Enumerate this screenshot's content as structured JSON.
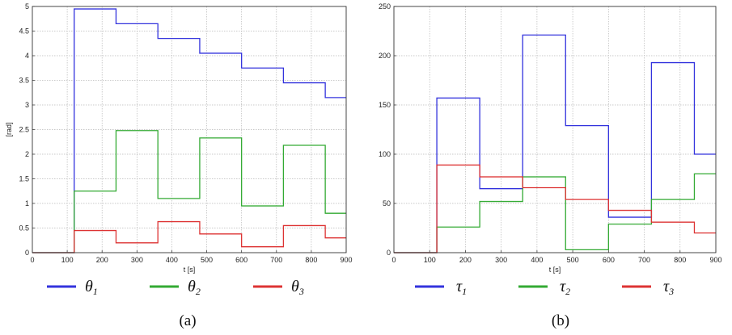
{
  "chart_data": [
    {
      "type": "line",
      "step": true,
      "xlabel": "t [s]",
      "ylabel": "[rad]",
      "xlim": [
        0,
        900
      ],
      "ylim": [
        0,
        5
      ],
      "xticks": [
        "0",
        "100",
        "200",
        "300",
        "400",
        "500",
        "600",
        "700",
        "800",
        "900"
      ],
      "yticks": [
        "0",
        "0.5",
        "1",
        "1.5",
        "2",
        "2.5",
        "3",
        "3.5",
        "4",
        "4.5",
        "5"
      ],
      "grid": true,
      "legend_position": "bottom",
      "caption": "(a)",
      "series": [
        {
          "name": "θ",
          "subscript": "1",
          "color": "#3333dd",
          "x": [
            0,
            120,
            120,
            240,
            360,
            480,
            600,
            720,
            840,
            900
          ],
          "y": [
            0,
            0,
            4.95,
            4.65,
            4.35,
            4.05,
            3.75,
            3.45,
            3.15,
            3.15
          ]
        },
        {
          "name": "θ",
          "subscript": "2",
          "color": "#33aa33",
          "x": [
            0,
            120,
            120,
            240,
            360,
            480,
            600,
            720,
            840,
            900
          ],
          "y": [
            0,
            0,
            1.25,
            2.48,
            1.1,
            2.33,
            0.95,
            2.18,
            0.8,
            0.8
          ]
        },
        {
          "name": "θ",
          "subscript": "3",
          "color": "#dd3333",
          "x": [
            0,
            120,
            120,
            240,
            360,
            480,
            600,
            720,
            840,
            900
          ],
          "y": [
            0,
            0,
            0.45,
            0.2,
            0.63,
            0.38,
            0.12,
            0.55,
            0.3,
            0.3
          ]
        }
      ]
    },
    {
      "type": "line",
      "step": true,
      "xlabel": "t [s]",
      "ylabel": "",
      "xlim": [
        0,
        900
      ],
      "ylim": [
        0,
        250
      ],
      "xticks": [
        "0",
        "100",
        "200",
        "300",
        "400",
        "500",
        "600",
        "700",
        "800",
        "900"
      ],
      "yticks": [
        "0",
        "50",
        "100",
        "150",
        "200",
        "250"
      ],
      "grid": true,
      "legend_position": "bottom",
      "caption": "(b)",
      "series": [
        {
          "name": "τ",
          "subscript": "1",
          "color": "#3333dd",
          "x": [
            0,
            120,
            120,
            240,
            360,
            480,
            600,
            720,
            840,
            900
          ],
          "y": [
            0,
            0,
            157,
            65,
            221,
            129,
            36,
            193,
            100,
            100
          ]
        },
        {
          "name": "τ",
          "subscript": "2",
          "color": "#33aa33",
          "x": [
            0,
            120,
            120,
            240,
            360,
            480,
            600,
            720,
            840,
            900
          ],
          "y": [
            0,
            0,
            26,
            52,
            77,
            3,
            29,
            54,
            80,
            80
          ]
        },
        {
          "name": "τ",
          "subscript": "3",
          "color": "#dd3333",
          "x": [
            0,
            120,
            120,
            240,
            360,
            480,
            600,
            720,
            840,
            900
          ],
          "y": [
            0,
            0,
            89,
            77,
            66,
            54,
            43,
            31,
            20,
            20
          ]
        }
      ]
    }
  ]
}
